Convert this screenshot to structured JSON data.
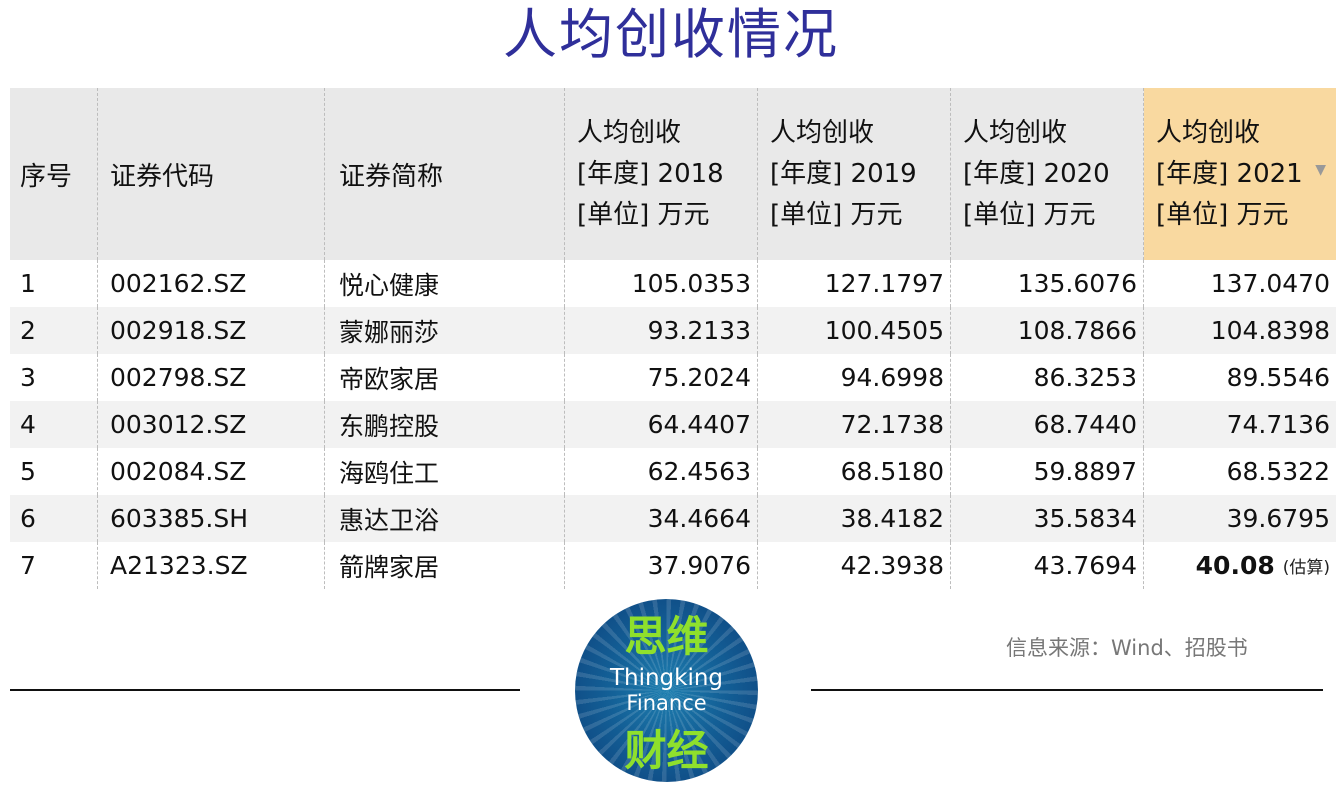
{
  "title": "人均创收情况",
  "chart_data": {
    "type": "table",
    "title": "人均创收情况",
    "columns": [
      "序号",
      "证券代码",
      "证券简称",
      [
        "人均创收",
        "[年度] 2018",
        "[单位] 万元"
      ],
      [
        "人均创收",
        "[年度] 2019",
        "[单位] 万元"
      ],
      [
        "人均创收",
        "[年度] 2020",
        "[单位] 万元"
      ],
      [
        "人均创收",
        "[年度] 2021",
        "[单位] 万元"
      ]
    ],
    "rows": [
      [
        "1",
        "002162.SZ",
        "悦心健康",
        "105.0353",
        "127.1797",
        "135.6076",
        "137.0470"
      ],
      [
        "2",
        "002918.SZ",
        "蒙娜丽莎",
        "93.2133",
        "100.4505",
        "108.7866",
        "104.8398"
      ],
      [
        "3",
        "002798.SZ",
        "帝欧家居",
        "75.2024",
        "94.6998",
        "86.3253",
        "89.5546"
      ],
      [
        "4",
        "003012.SZ",
        "东鹏控股",
        "64.4407",
        "72.1738",
        "68.7440",
        "74.7136"
      ],
      [
        "5",
        "002084.SZ",
        "海鸥住工",
        "62.4563",
        "68.5180",
        "59.8897",
        "68.5322"
      ],
      [
        "6",
        "603385.SH",
        "惠达卫浴",
        "34.4664",
        "38.4182",
        "35.5834",
        "39.6795"
      ],
      [
        "7",
        "A21323.SZ",
        "箭牌家居",
        "37.9076",
        "42.3938",
        "43.7694",
        "40.08"
      ]
    ],
    "estimate_note": "(估算)",
    "highlight_column_color": "#f9d9a0"
  },
  "source": "信息来源：Wind、招股书",
  "logo": {
    "cn_top": "思维",
    "en_line1": "Thingking",
    "en_line2": "Finance",
    "cn_bottom": "财经"
  },
  "colors": {
    "title": "#2f2f9a",
    "header_bg": "#e9e9e9",
    "highlight": "#f9d9a0",
    "logo_green": "#8fe02c"
  }
}
